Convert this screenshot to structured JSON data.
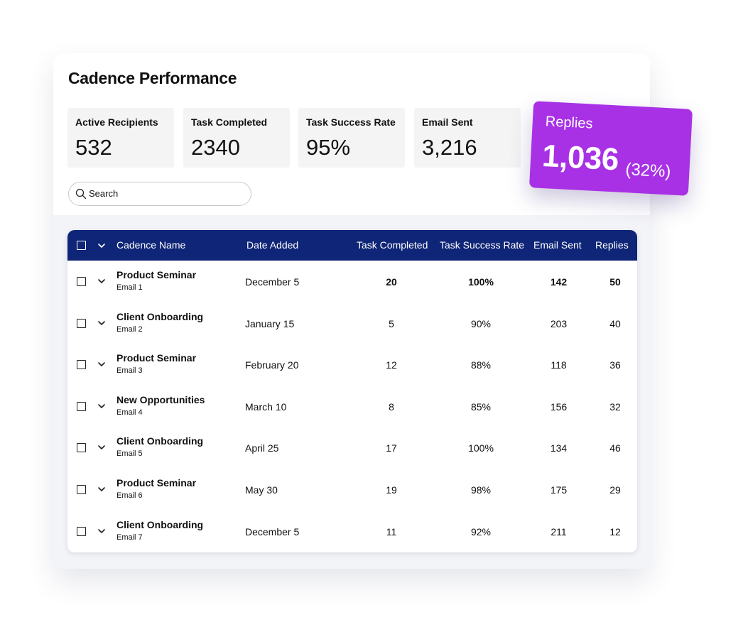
{
  "title": "Cadence Performance",
  "stats": [
    {
      "label": "Active Recipients",
      "value": "532"
    },
    {
      "label": "Task Completed",
      "value": "2340"
    },
    {
      "label": "Task Success Rate",
      "value": "95%"
    },
    {
      "label": "Email Sent",
      "value": "3,216"
    }
  ],
  "replies_card": {
    "label": "Replies",
    "value": "1,036",
    "percent": "(32%)",
    "color": "#a831e6"
  },
  "search": {
    "placeholder": "Search"
  },
  "table": {
    "header_color": "#0f2577",
    "columns": [
      "Cadence Name",
      "Date Added",
      "Task Completed",
      "Task Success Rate",
      "Email Sent",
      "Replies"
    ],
    "rows": [
      {
        "name": "Product Seminar",
        "sub": "Email 1",
        "date": "December 5",
        "tasks": "20",
        "rate": "100%",
        "email": "142",
        "replies": "50"
      },
      {
        "name": "Client Onboarding",
        "sub": "Email 2",
        "date": "January 15",
        "tasks": "5",
        "rate": "90%",
        "email": "203",
        "replies": "40"
      },
      {
        "name": "Product Seminar",
        "sub": "Email 3",
        "date": "February 20",
        "tasks": "12",
        "rate": "88%",
        "email": "118",
        "replies": "36"
      },
      {
        "name": "New Opportunities",
        "sub": "Email 4",
        "date": "March 10",
        "tasks": "8",
        "rate": "85%",
        "email": "156",
        "replies": "32"
      },
      {
        "name": "Client Onboarding",
        "sub": "Email 5",
        "date": "April 25",
        "tasks": "17",
        "rate": "100%",
        "email": "134",
        "replies": "46"
      },
      {
        "name": "Product Seminar",
        "sub": "Email 6",
        "date": "May 30",
        "tasks": "19",
        "rate": "98%",
        "email": "175",
        "replies": "29"
      },
      {
        "name": "Client Onboarding",
        "sub": "Email 7",
        "date": "December 5",
        "tasks": "11",
        "rate": "92%",
        "email": "211",
        "replies": "12"
      }
    ]
  }
}
